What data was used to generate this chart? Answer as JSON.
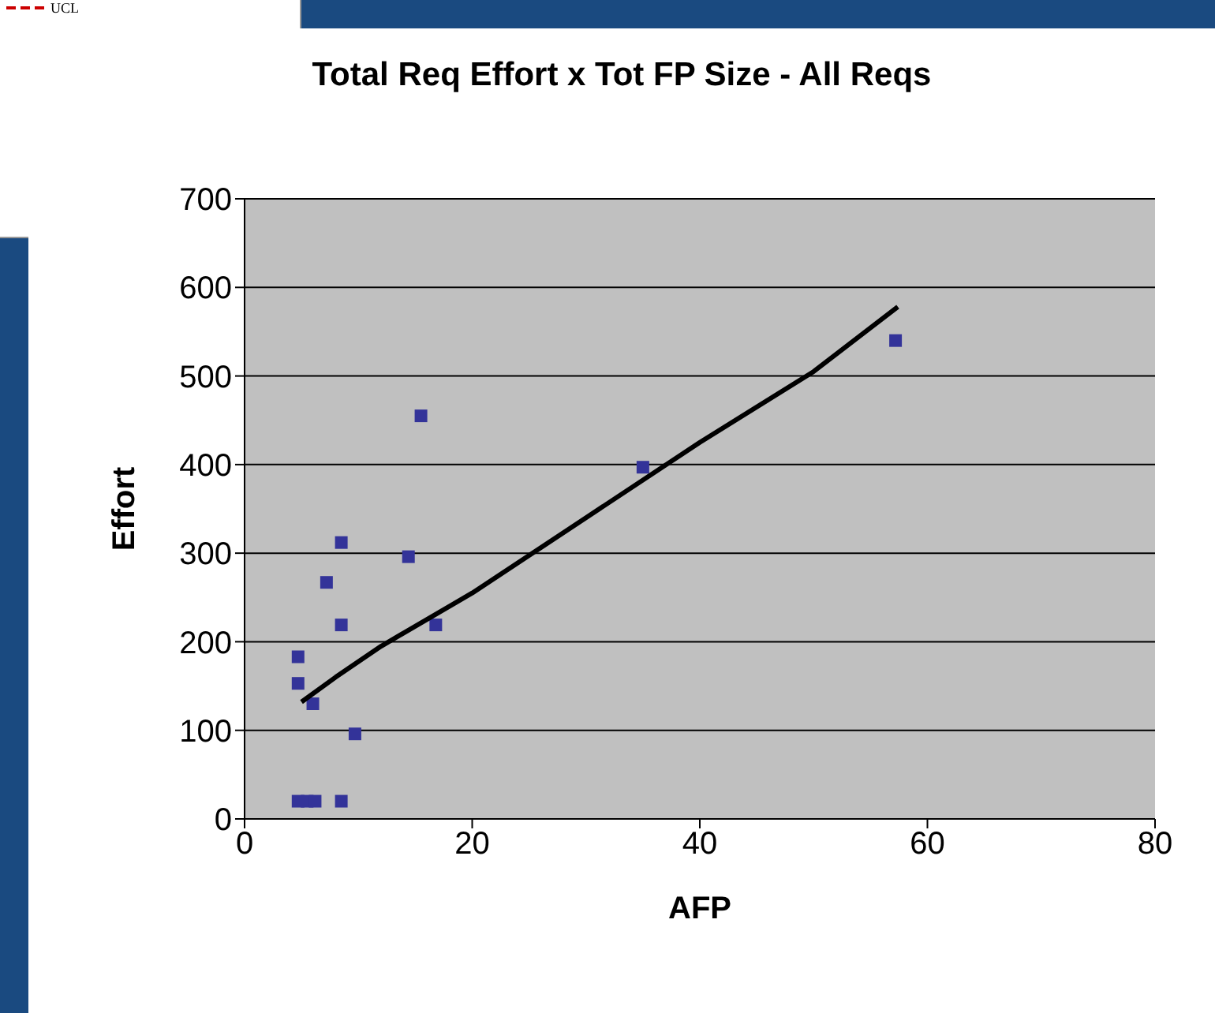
{
  "chart_data": {
    "type": "scatter",
    "title": "Total Req Effort x Tot FP Size - All  Reqs",
    "xlabel": "AFP",
    "ylabel": "Effort",
    "xlim": [
      0,
      80
    ],
    "xticks": [
      0,
      20,
      40,
      60,
      80
    ],
    "ylim": [
      0,
      700
    ],
    "yticks": [
      0,
      100,
      200,
      300,
      400,
      500,
      600,
      700
    ],
    "grid": "y",
    "legend": false,
    "marker": "square",
    "annotations": [
      "UCL"
    ],
    "series": [
      {
        "color": "#333399",
        "x": [
          4.7,
          4.7,
          6.0,
          7.2,
          8.5,
          8.5,
          9.7,
          14.4,
          15.5,
          16.8,
          35.0,
          57.2,
          4.7,
          5.5,
          6.2,
          8.5
        ],
        "values": [
          183,
          153,
          130,
          267,
          312,
          219,
          96,
          296,
          455,
          219,
          397,
          540,
          20,
          20,
          20,
          20
        ]
      },
      {
        "type": "line",
        "color": "#000000",
        "line_style": "solid",
        "marker": "none",
        "x": [
          5,
          8,
          12,
          20,
          30,
          40,
          50,
          57.4
        ],
        "values": [
          132,
          160,
          195,
          255,
          340,
          425,
          505,
          578
        ]
      }
    ]
  }
}
